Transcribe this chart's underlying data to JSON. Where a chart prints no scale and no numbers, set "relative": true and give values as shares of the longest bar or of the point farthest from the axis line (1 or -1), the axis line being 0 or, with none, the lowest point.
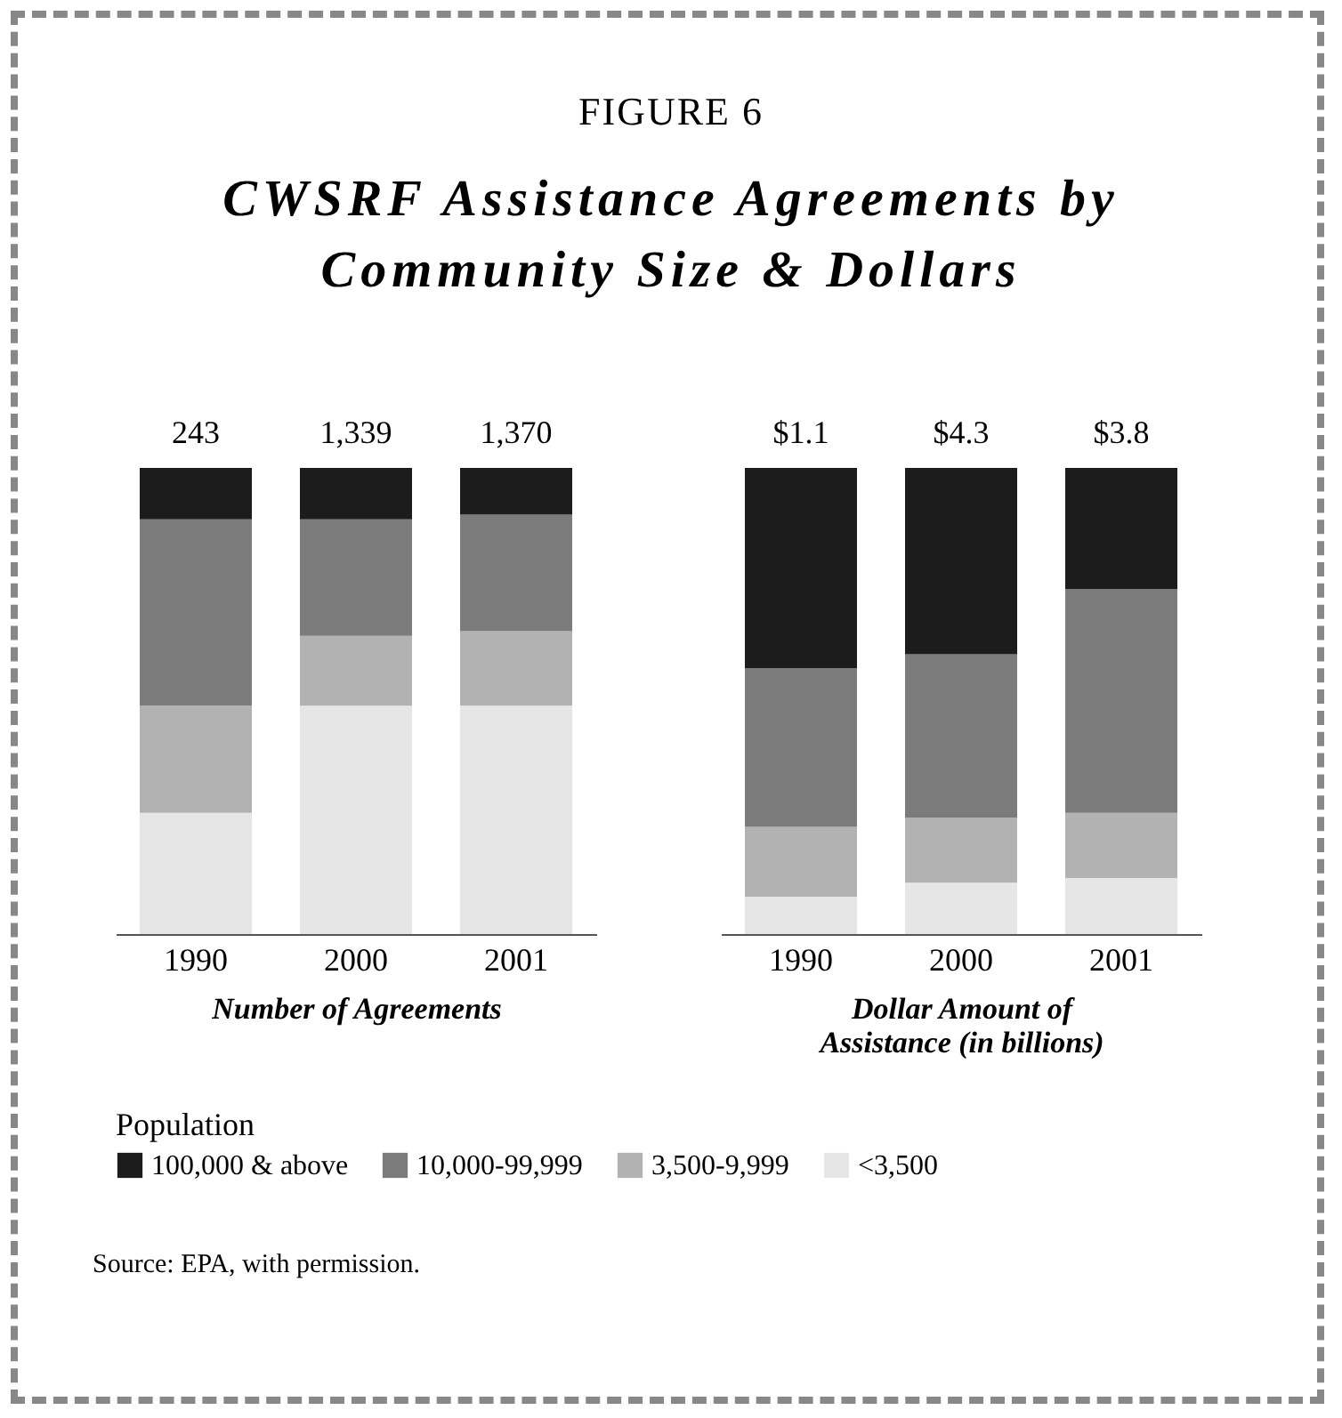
{
  "chart_data": [
    {
      "type": "bar",
      "subtitle": "FIGURE 6",
      "title": "CWSRF Assistance Agreements by Community Size & Dollars",
      "xlabel": "Number of Agreements",
      "categories": [
        "1990",
        "2000",
        "2001"
      ],
      "stacked": true,
      "relative": true,
      "legend": "bottom",
      "legend_title": "Population",
      "annotations": [
        {
          "text": "243",
          "x": "1990",
          "y": 1
        },
        {
          "text": "1,339",
          "x": "2000",
          "y": 1
        },
        {
          "text": "1,370",
          "x": "2001",
          "y": 1
        },
        "Source: EPA, with permission."
      ],
      "series": [
        {
          "name": "<3,500",
          "color": "#e6e6e7",
          "values": [
            0.26,
            0.49,
            0.49
          ]
        },
        {
          "name": "3,500-9,999",
          "color": "#b2b2b3",
          "values": [
            0.23,
            0.15,
            0.16
          ]
        },
        {
          "name": "10,000-99,999",
          "color": "#7b7b7c",
          "values": [
            0.4,
            0.25,
            0.25
          ]
        },
        {
          "name": "100,000 & above",
          "color": "#1c1c1c",
          "values": [
            0.11,
            0.11,
            0.1
          ]
        }
      ]
    },
    {
      "type": "bar",
      "xlabel": "Dollar Amount of Assistance (in billions)",
      "categories": [
        "1990",
        "2000",
        "2001"
      ],
      "stacked": true,
      "relative": true,
      "annotations": [
        {
          "text": "$1.1",
          "x": "1990",
          "y": 1
        },
        {
          "text": "$4.3",
          "x": "2000",
          "y": 1
        },
        {
          "text": "$3.8",
          "x": "2001",
          "y": 1
        }
      ],
      "series": [
        {
          "name": "<3,500",
          "color": "#e6e6e7",
          "values": [
            0.08,
            0.11,
            0.12
          ]
        },
        {
          "name": "3,500-9,999",
          "color": "#b2b2b3",
          "values": [
            0.15,
            0.14,
            0.14
          ]
        },
        {
          "name": "10,000-99,999",
          "color": "#7b7b7c",
          "values": [
            0.34,
            0.35,
            0.48
          ]
        },
        {
          "name": "100,000 & above",
          "color": "#1c1c1c",
          "values": [
            0.43,
            0.4,
            0.26
          ]
        }
      ]
    }
  ]
}
